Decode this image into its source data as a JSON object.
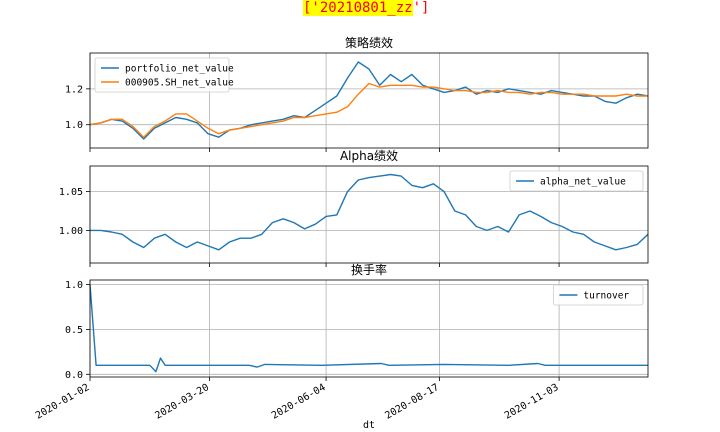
{
  "figure_badge": "['20210801_zz']",
  "colors": {
    "blue": "#1f77b4",
    "orange": "#ff7f0e",
    "grid": "#b0b0b0"
  },
  "chart_data": [
    {
      "type": "line",
      "title": "策略绩效",
      "ylim": [
        0.87,
        1.4
      ],
      "yticks": [
        1.0,
        1.2
      ],
      "ytick_labels": [
        "1.0",
        "1.2"
      ],
      "xlim": [
        "2020-01-02",
        "2020-12-31"
      ],
      "grid": true,
      "legend": "top-left",
      "x_step_days": 7,
      "series": [
        {
          "name": "portfolio_net_value",
          "color": "#1f77b4",
          "values": [
            1.0,
            1.01,
            1.03,
            1.02,
            0.98,
            0.92,
            0.98,
            1.01,
            1.04,
            1.03,
            1.01,
            0.95,
            0.93,
            0.97,
            0.98,
            1.0,
            1.01,
            1.02,
            1.03,
            1.05,
            1.04,
            1.08,
            1.12,
            1.16,
            1.26,
            1.35,
            1.31,
            1.22,
            1.28,
            1.24,
            1.28,
            1.22,
            1.2,
            1.18,
            1.19,
            1.21,
            1.17,
            1.19,
            1.18,
            1.2,
            1.19,
            1.18,
            1.17,
            1.19,
            1.18,
            1.17,
            1.16,
            1.16,
            1.13,
            1.12,
            1.15,
            1.17,
            1.16
          ]
        },
        {
          "name": "000905.SH_net_value",
          "color": "#ff7f0e",
          "values": [
            1.0,
            1.01,
            1.03,
            1.03,
            0.99,
            0.93,
            0.99,
            1.02,
            1.06,
            1.06,
            1.02,
            0.98,
            0.95,
            0.97,
            0.98,
            0.99,
            1.0,
            1.01,
            1.02,
            1.04,
            1.04,
            1.05,
            1.06,
            1.07,
            1.1,
            1.17,
            1.23,
            1.21,
            1.22,
            1.22,
            1.22,
            1.21,
            1.21,
            1.2,
            1.19,
            1.19,
            1.18,
            1.18,
            1.19,
            1.18,
            1.18,
            1.17,
            1.18,
            1.18,
            1.17,
            1.17,
            1.17,
            1.16,
            1.16,
            1.16,
            1.17,
            1.16,
            1.16
          ]
        }
      ]
    },
    {
      "type": "line",
      "title": "Alpha绩效",
      "ylim": [
        0.958,
        1.083
      ],
      "yticks": [
        1.0,
        1.05
      ],
      "ytick_labels": [
        "1.00",
        "1.05"
      ],
      "xlim": [
        "2020-01-02",
        "2020-12-31"
      ],
      "grid": true,
      "legend": "top-right",
      "x_step_days": 7,
      "series": [
        {
          "name": "alpha_net_value",
          "color": "#1f77b4",
          "values": [
            1.0,
            1.0,
            0.998,
            0.995,
            0.985,
            0.978,
            0.99,
            0.995,
            0.985,
            0.978,
            0.985,
            0.98,
            0.975,
            0.985,
            0.99,
            0.99,
            0.995,
            1.01,
            1.015,
            1.01,
            1.002,
            1.008,
            1.018,
            1.02,
            1.05,
            1.065,
            1.068,
            1.07,
            1.072,
            1.07,
            1.058,
            1.055,
            1.06,
            1.05,
            1.025,
            1.02,
            1.005,
            1.0,
            1.005,
            0.998,
            1.02,
            1.025,
            1.018,
            1.01,
            1.005,
            0.998,
            0.995,
            0.985,
            0.98,
            0.975,
            0.978,
            0.982,
            0.995
          ]
        }
      ]
    },
    {
      "type": "line",
      "title": "换手率",
      "ylim": [
        -0.03,
        1.05
      ],
      "yticks": [
        0.0,
        0.5,
        1.0
      ],
      "ytick_labels": [
        "0.0",
        "0.5",
        "1.0"
      ],
      "xlim": [
        "2020-01-02",
        "2020-12-31"
      ],
      "grid": true,
      "legend": "top-right",
      "xlabel": "dt",
      "xticks": [
        "2020-01-02",
        "2020-03-20",
        "2020-06-04",
        "2020-08-17",
        "2020-11-03"
      ],
      "series": [
        {
          "name": "turnover",
          "color": "#1f77b4",
          "points": [
            [
              "2020-01-02",
              1.0
            ],
            [
              "2020-01-06",
              0.1
            ],
            [
              "2020-02-10",
              0.1
            ],
            [
              "2020-02-14",
              0.03
            ],
            [
              "2020-02-17",
              0.18
            ],
            [
              "2020-02-20",
              0.1
            ],
            [
              "2020-04-15",
              0.1
            ],
            [
              "2020-04-20",
              0.08
            ],
            [
              "2020-04-25",
              0.11
            ],
            [
              "2020-06-01",
              0.1
            ],
            [
              "2020-07-10",
              0.12
            ],
            [
              "2020-07-15",
              0.1
            ],
            [
              "2020-08-20",
              0.11
            ],
            [
              "2020-10-01",
              0.1
            ],
            [
              "2020-10-20",
              0.12
            ],
            [
              "2020-10-25",
              0.1
            ],
            [
              "2020-12-31",
              0.1
            ]
          ]
        }
      ]
    }
  ]
}
